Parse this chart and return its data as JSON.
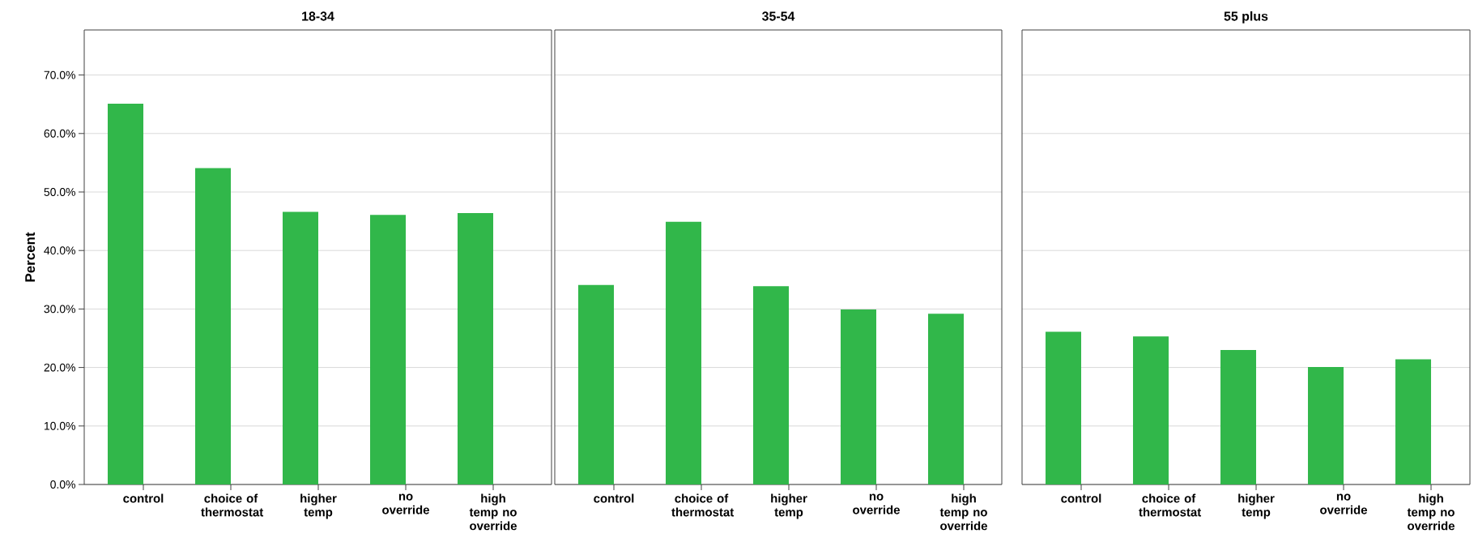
{
  "chart_data": [
    {
      "type": "bar",
      "title": "18-34",
      "ylabel": "Percent",
      "categories": [
        "control",
        "choice of thermostat",
        "higher temp",
        "no override",
        "high temp no override"
      ],
      "values": [
        65.1,
        54.1,
        46.6,
        46.1,
        46.4
      ],
      "color": "#31b74a",
      "ylim": [
        0,
        77.7
      ],
      "yticks": [
        {
          "value": 0,
          "label": "0.0%"
        },
        {
          "value": 10,
          "label": "10.0%"
        },
        {
          "value": 20,
          "label": "20.0%"
        },
        {
          "value": 30,
          "label": "30.0%"
        },
        {
          "value": 40,
          "label": "40.0%"
        },
        {
          "value": 50,
          "label": "50.0%"
        },
        {
          "value": 60,
          "label": "60.0%"
        },
        {
          "value": 70,
          "label": "70.0%"
        }
      ],
      "grid": "y"
    },
    {
      "type": "bar",
      "title": "35-54",
      "categories": [
        "control",
        "choice of thermostat",
        "higher temp",
        "no override",
        "high temp no override"
      ],
      "values": [
        34.1,
        44.9,
        33.9,
        29.9,
        29.2
      ],
      "color": "#31b74a",
      "ylim": [
        0,
        77.7
      ],
      "yticks": [
        0,
        10,
        20,
        30,
        40,
        50,
        60,
        70
      ],
      "grid": "y",
      "tick_labels": "x"
    },
    {
      "type": "bar",
      "title": "55 plus",
      "categories": [
        "control",
        "choice of thermostat",
        "higher temp",
        "no override",
        "high temp no override"
      ],
      "values": [
        26.1,
        25.3,
        23.0,
        20.1,
        21.4
      ],
      "color": "#31b74a",
      "ylim": [
        0,
        77.7
      ],
      "yticks": [
        0,
        10,
        20,
        30,
        40,
        50,
        60,
        70
      ],
      "grid": "y",
      "tick_labels": "x"
    }
  ]
}
